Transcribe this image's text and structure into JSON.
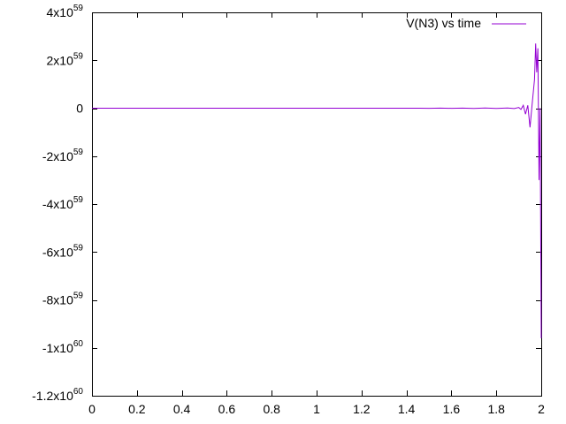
{
  "chart_data": {
    "type": "line",
    "title": "",
    "xlabel": "",
    "ylabel": "",
    "xlim": [
      0,
      2
    ],
    "ylim": [
      -1.2e+60,
      4e+59
    ],
    "grid": false,
    "legend_position": "top-right",
    "x_ticks": [
      {
        "value": 0,
        "label": "0"
      },
      {
        "value": 0.2,
        "label": "0.2"
      },
      {
        "value": 0.4,
        "label": "0.4"
      },
      {
        "value": 0.6,
        "label": "0.6"
      },
      {
        "value": 0.8,
        "label": "0.8"
      },
      {
        "value": 1,
        "label": "1"
      },
      {
        "value": 1.2,
        "label": "1.2"
      },
      {
        "value": 1.4,
        "label": "1.4"
      },
      {
        "value": 1.6,
        "label": "1.6"
      },
      {
        "value": 1.8,
        "label": "1.8"
      },
      {
        "value": 2,
        "label": "2"
      }
    ],
    "y_ticks": [
      {
        "value": 4e+59,
        "mant": "4x10",
        "exp": "59"
      },
      {
        "value": 2e+59,
        "mant": "2x10",
        "exp": "59"
      },
      {
        "value": 0,
        "mant": "0",
        "exp": ""
      },
      {
        "value": -2e+59,
        "mant": "-2x10",
        "exp": "59"
      },
      {
        "value": -4e+59,
        "mant": "-4x10",
        "exp": "59"
      },
      {
        "value": -6e+59,
        "mant": "-6x10",
        "exp": "59"
      },
      {
        "value": -8e+59,
        "mant": "-8x10",
        "exp": "59"
      },
      {
        "value": -1e+60,
        "mant": "-1x10",
        "exp": "60"
      },
      {
        "value": -1.2e+60,
        "mant": "-1.2x10",
        "exp": "60"
      }
    ],
    "series": [
      {
        "name": "V(N3) vs time",
        "color": "#9400d3",
        "x": [
          0,
          0.5,
          1.0,
          1.4,
          1.46,
          1.5,
          1.55,
          1.6,
          1.65,
          1.7,
          1.75,
          1.8,
          1.85,
          1.88,
          1.9,
          1.91,
          1.92,
          1.93,
          1.94,
          1.95,
          1.96,
          1.97,
          1.975,
          1.98,
          1.985,
          1.99,
          1.995,
          2.0
        ],
        "y": [
          0,
          0,
          0,
          0,
          0,
          -4e+56,
          4e+56,
          -5e+56,
          5e+56,
          -6e+56,
          6e+56,
          -8e+56,
          1e+57,
          -1.5e+57,
          3e+57,
          -5e+57,
          1.2e+58,
          -2.5e+58,
          1.2e+58,
          -8e+58,
          2e+58,
          1.2e+59,
          2.7e+59,
          1.5e+59,
          2.5e+59,
          -3e+59,
          0,
          -9.6e+59
        ]
      }
    ]
  }
}
